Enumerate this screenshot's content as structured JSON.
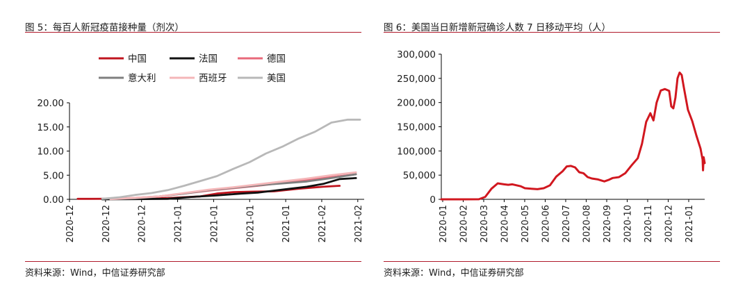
{
  "left": {
    "title": "图 5：每百人新冠疫苗接种量（剂次）",
    "source": "资料来源：Wind，中信证券研究部"
  },
  "right": {
    "title": "图 6：美国当日新增新冠确诊人数 7 日移动平均（人）",
    "source": "资料来源：Wind，中信证券研究部"
  },
  "colors": {
    "rule": "#b0182a",
    "axis": "#000000"
  },
  "chart_data": [
    {
      "type": "line",
      "title": "图 5：每百人新冠疫苗接种量（剂次）",
      "ylim": [
        0,
        20
      ],
      "yticks": [
        0,
        5,
        10,
        15,
        20
      ],
      "ytick_labels": [
        "0.00",
        "5.00",
        "10.00",
        "15.00",
        "20.00"
      ],
      "xlim": [
        0,
        72
      ],
      "xtick_labels": [
        "2020-12",
        "2020-12",
        "2020-12",
        "2021-01",
        "2021-01",
        "2021-01",
        "2021-01",
        "2021-02",
        "2021-02"
      ],
      "legend_position": "top",
      "legend_rows": [
        [
          "中国",
          "法国",
          "德国"
        ],
        [
          "意大利",
          "西班牙",
          "美国"
        ]
      ],
      "series": [
        {
          "name": "中国",
          "color": "#c0141e",
          "x": [
            2,
            5,
            20,
            25,
            32,
            36,
            40,
            45,
            50,
            56,
            62,
            66
          ],
          "y": [
            0.1,
            0.1,
            0.15,
            0.3,
            0.6,
            1.2,
            1.5,
            1.6,
            1.65,
            2.2,
            2.6,
            2.8
          ]
        },
        {
          "name": "法国",
          "color": "#111111",
          "x": [
            8,
            16,
            24,
            30,
            36,
            42,
            46,
            50,
            54,
            58,
            62,
            66,
            70
          ],
          "y": [
            0,
            0.05,
            0.1,
            0.5,
            0.8,
            1.2,
            1.4,
            1.8,
            2.2,
            2.6,
            3.2,
            4.2,
            4.4
          ]
        },
        {
          "name": "德国",
          "color": "#e8697a",
          "x": [
            10,
            16,
            22,
            28,
            34,
            40,
            46,
            52,
            58,
            64,
            70
          ],
          "y": [
            0.1,
            0.3,
            0.6,
            1.2,
            1.8,
            2.3,
            2.8,
            3.4,
            4.0,
            4.6,
            5.2
          ]
        },
        {
          "name": "意大利",
          "color": "#7f7f7f",
          "x": [
            10,
            16,
            22,
            28,
            34,
            40,
            46,
            52,
            58,
            64,
            70
          ],
          "y": [
            0.05,
            0.2,
            0.6,
            1.2,
            1.9,
            2.4,
            2.9,
            3.3,
            3.7,
            4.4,
            5.2
          ]
        },
        {
          "name": "西班牙",
          "color": "#f4b6b8",
          "x": [
            10,
            16,
            22,
            28,
            34,
            40,
            46,
            52,
            58,
            64,
            70
          ],
          "y": [
            0.05,
            0.3,
            0.6,
            1.3,
            2.0,
            2.5,
            3.1,
            3.7,
            4.3,
            5.0,
            5.6
          ]
        },
        {
          "name": "美国",
          "color": "#b8b8b8",
          "x": [
            8,
            12,
            16,
            20,
            24,
            28,
            32,
            36,
            40,
            44,
            48,
            52,
            56,
            60,
            64,
            68,
            71
          ],
          "y": [
            0.1,
            0.4,
            0.9,
            1.3,
            1.9,
            2.8,
            3.8,
            4.8,
            6.3,
            7.7,
            9.5,
            10.9,
            12.6,
            14.0,
            15.9,
            16.5,
            16.5
          ]
        }
      ]
    },
    {
      "type": "line",
      "title": "图 6：美国当日新增新冠确诊人数 7 日移动平均（人）",
      "ylim": [
        0,
        300000
      ],
      "yticks": [
        0,
        50000,
        100000,
        150000,
        200000,
        250000,
        300000
      ],
      "ytick_labels": [
        "0",
        "50,000",
        "100,000",
        "150,000",
        "200,000",
        "250,000",
        "300,000"
      ],
      "xlim": [
        0,
        12.6
      ],
      "xtick_labels": [
        "2020-01",
        "2020-02",
        "2020-03",
        "2020-04",
        "2020-05",
        "2020-06",
        "2020-07",
        "2020-08",
        "2020-09",
        "2020-10",
        "2020-11",
        "2020-12",
        "2021-01"
      ],
      "series": [
        {
          "name": "",
          "color": "#d1171f",
          "x": [
            0,
            1.0,
            1.8,
            2.1,
            2.4,
            2.7,
            3.0,
            3.2,
            3.4,
            3.6,
            3.8,
            4.0,
            4.3,
            4.6,
            4.9,
            5.2,
            5.5,
            5.8,
            6.0,
            6.2,
            6.4,
            6.6,
            6.8,
            7.0,
            7.2,
            7.5,
            7.8,
            8.0,
            8.2,
            8.5,
            8.8,
            9.1,
            9.4,
            9.6,
            9.8,
            10.0,
            10.15,
            10.3,
            10.5,
            10.7,
            10.9,
            11.0,
            11.1,
            11.2,
            11.3,
            11.4,
            11.5,
            11.6,
            11.8,
            12.0,
            12.2,
            12.4,
            12.5,
            12.52,
            12.55,
            12.6
          ],
          "y": [
            0,
            0,
            200,
            5000,
            22000,
            33000,
            31000,
            30000,
            31000,
            29000,
            27000,
            23000,
            22000,
            21000,
            23000,
            29000,
            47000,
            58000,
            68000,
            69000,
            66000,
            56000,
            54000,
            46000,
            43000,
            41000,
            37000,
            40000,
            44000,
            46000,
            54000,
            70000,
            85000,
            115000,
            160000,
            178000,
            163000,
            200000,
            225000,
            228000,
            224000,
            192000,
            188000,
            210000,
            250000,
            262000,
            257000,
            232000,
            185000,
            162000,
            132000,
            105000,
            82000,
            60000,
            87000,
            75000
          ]
        }
      ]
    }
  ]
}
